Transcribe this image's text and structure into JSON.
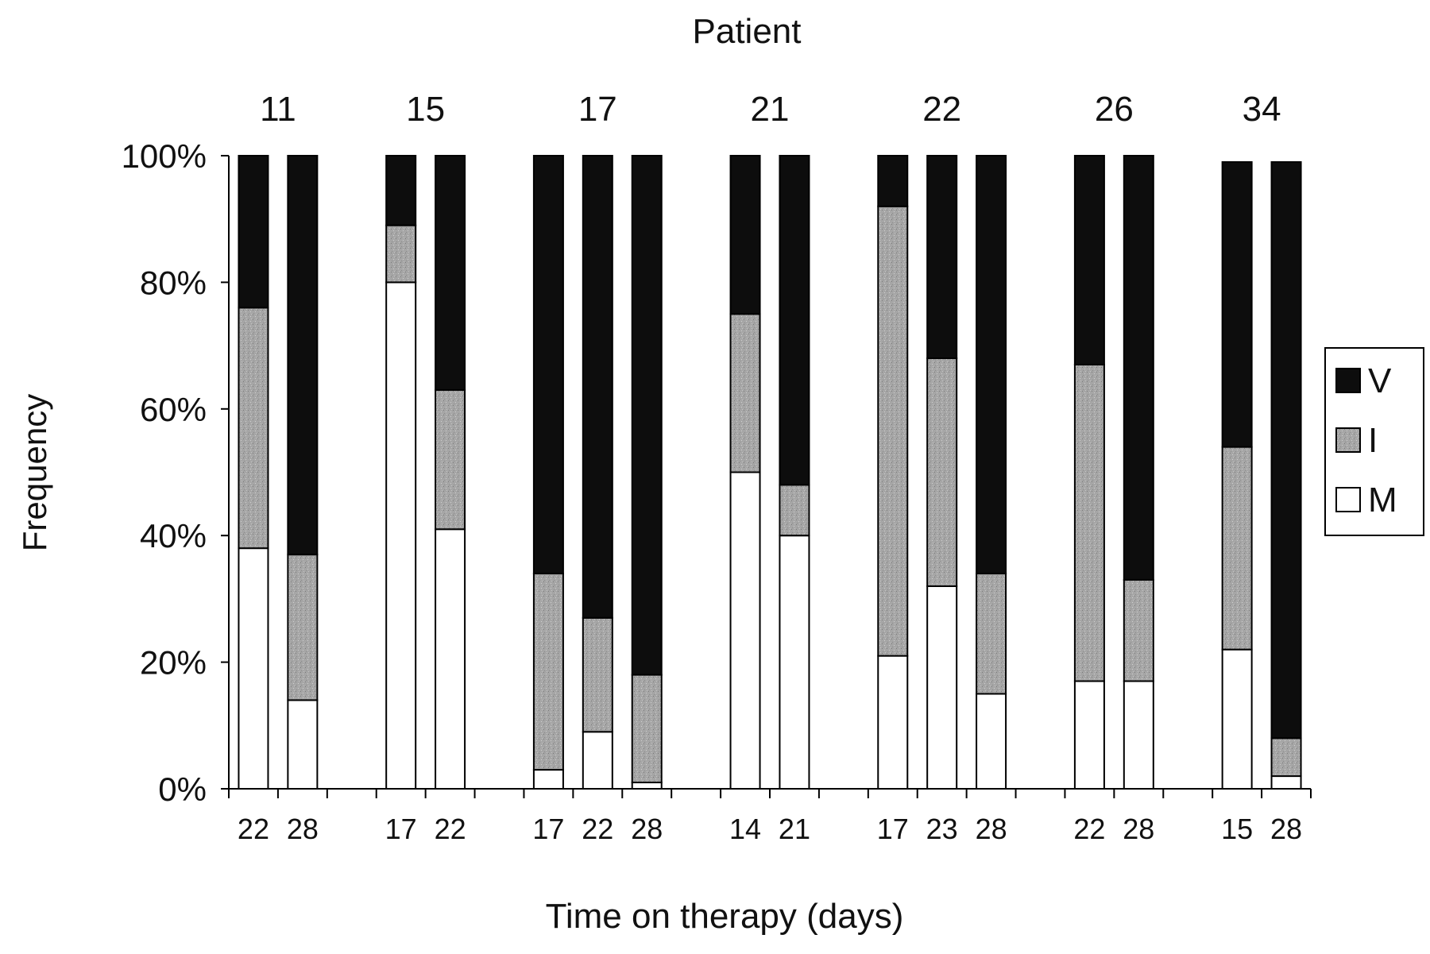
{
  "chart_data": {
    "type": "bar",
    "stacked": true,
    "percent": true,
    "title": "Patient",
    "xlabel": "Time on therapy (days)",
    "ylabel": "Frequency",
    "ylim": [
      0,
      100
    ],
    "yticks": [
      "0%",
      "20%",
      "40%",
      "60%",
      "80%",
      "100%"
    ],
    "groups": [
      {
        "patient": "11",
        "bars": [
          {
            "day": "22",
            "M": 38,
            "I": 38,
            "V": 24
          },
          {
            "day": "28",
            "M": 14,
            "I": 23,
            "V": 63
          }
        ]
      },
      {
        "patient": "15",
        "bars": [
          {
            "day": "17",
            "M": 80,
            "I": 9,
            "V": 11
          },
          {
            "day": "22",
            "M": 41,
            "I": 22,
            "V": 37
          }
        ]
      },
      {
        "patient": "17",
        "bars": [
          {
            "day": "17",
            "M": 3,
            "I": 31,
            "V": 66
          },
          {
            "day": "22",
            "M": 9,
            "I": 18,
            "V": 73
          },
          {
            "day": "28",
            "M": 1,
            "I": 17,
            "V": 82
          }
        ]
      },
      {
        "patient": "21",
        "bars": [
          {
            "day": "14",
            "M": 50,
            "I": 25,
            "V": 25
          },
          {
            "day": "21",
            "M": 40,
            "I": 8,
            "V": 52
          }
        ]
      },
      {
        "patient": "22",
        "bars": [
          {
            "day": "17",
            "M": 21,
            "I": 71,
            "V": 8
          },
          {
            "day": "23",
            "M": 32,
            "I": 36,
            "V": 32
          },
          {
            "day": "28",
            "M": 15,
            "I": 19,
            "V": 66
          }
        ]
      },
      {
        "patient": "26",
        "bars": [
          {
            "day": "22",
            "M": 17,
            "I": 50,
            "V": 33
          },
          {
            "day": "28",
            "M": 17,
            "I": 16,
            "V": 67
          }
        ]
      },
      {
        "patient": "34",
        "bars": [
          {
            "day": "15",
            "M": 22,
            "I": 32,
            "V": 45
          },
          {
            "day": "28",
            "M": 2,
            "I": 6,
            "V": 91
          }
        ]
      }
    ],
    "series": [
      {
        "key": "V",
        "name": "V",
        "color": "#0d0d0d"
      },
      {
        "key": "I",
        "name": "I",
        "color": "#a6a6a6"
      },
      {
        "key": "M",
        "name": "M",
        "color": "#ffffff"
      }
    ],
    "legend": "right",
    "grid": false
  }
}
